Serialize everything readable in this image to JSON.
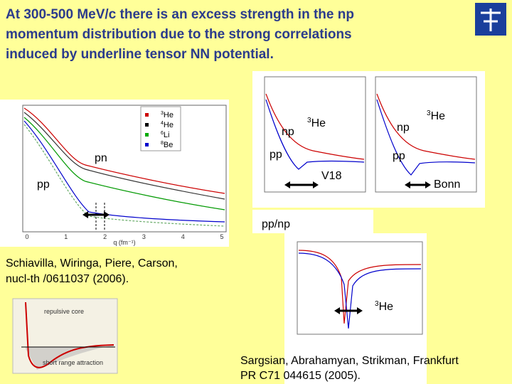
{
  "title": [
    "At 300-500 MeV/c there is an excess strength in the np",
    "momentum distribution due to the strong correlations",
    "induced by underline tensor NN potential."
  ],
  "left_plot": {
    "legend": [
      {
        "sup": "3",
        "text": "He"
      },
      {
        "sup": "4",
        "text": "He"
      },
      {
        "sup": "6",
        "text": "Li"
      },
      {
        "sup": "8",
        "text": "Be"
      }
    ],
    "pn_label": "pn",
    "pp_label": "pp",
    "x_axis_label": "q (fm⁻¹)",
    "x_ticks": [
      "0",
      "1",
      "2",
      "3",
      "4",
      "5"
    ]
  },
  "right_plots": [
    {
      "np_label": "np",
      "nucleus": {
        "sup": "3",
        "text": "He"
      },
      "pp_label": "pp",
      "potential": "V18"
    },
    {
      "np_label": "np",
      "nucleus": {
        "sup": "3",
        "text": "He"
      },
      "pp_label": "pp",
      "potential": "Bonn"
    }
  ],
  "ratio_plot": {
    "title": "pp/np",
    "nucleus": {
      "sup": "3",
      "text": "He"
    }
  },
  "inset": {
    "repulsive": "repulsive core",
    "attraction": "short range attraction"
  },
  "citations": {
    "schiavilla": [
      "Schiavilla, Wiringa, Piere, Carson,",
      "nucl-th /0611037 (2006)."
    ],
    "sargsian": [
      "Sargsian, Abrahamyan, Strikman, Frankfurt",
      "PR C71 044615 (2005)."
    ]
  }
}
